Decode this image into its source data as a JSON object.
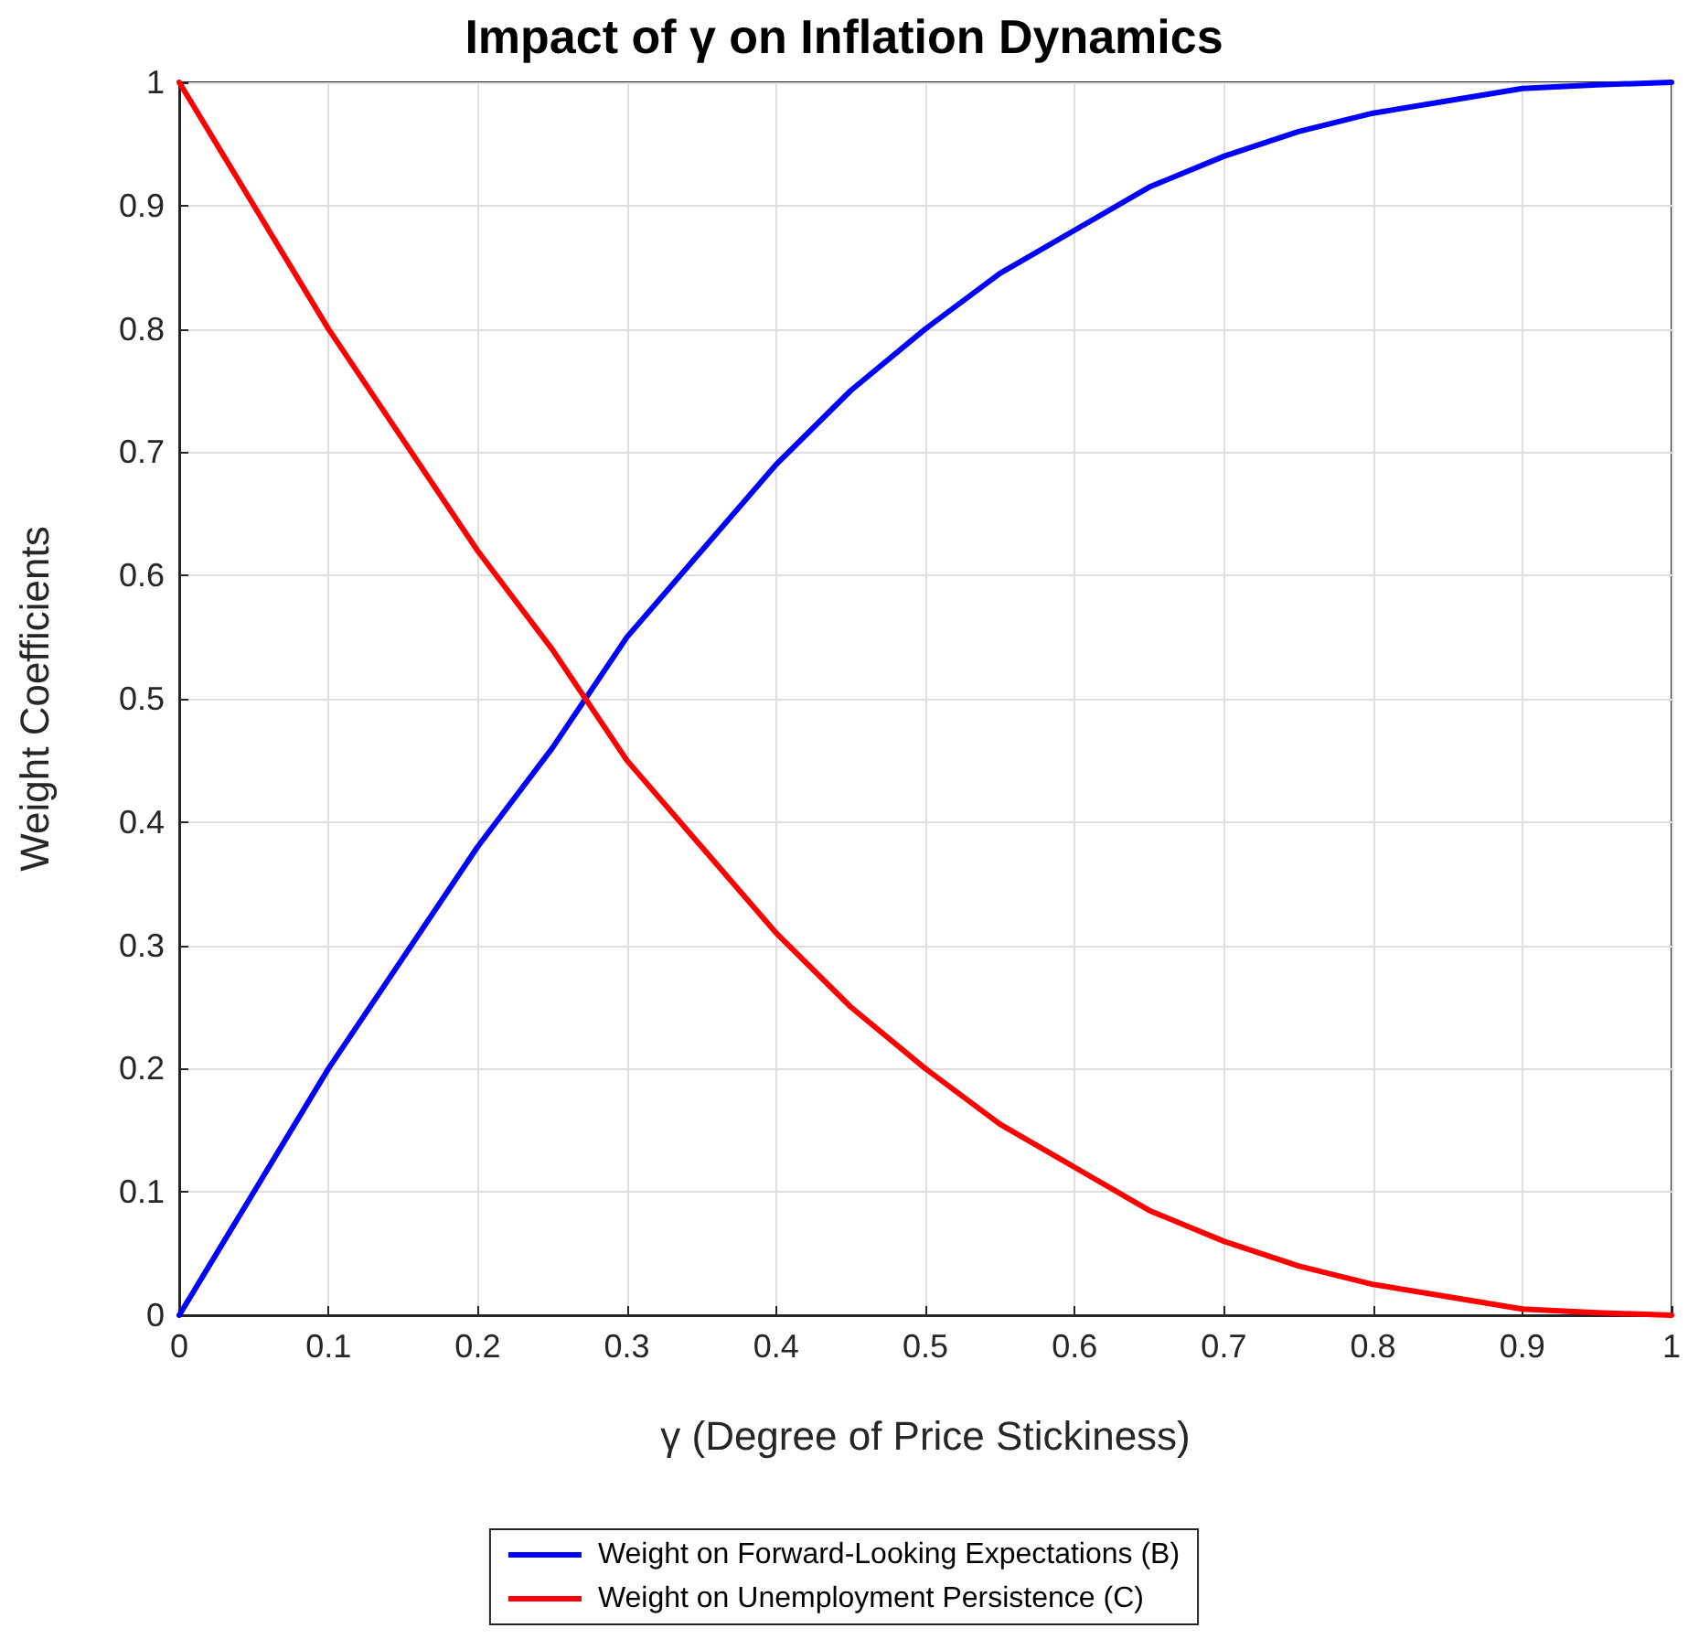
{
  "chart_data": {
    "type": "line",
    "title": "Impact of γ on Inflation Dynamics",
    "xlabel": "γ (Degree of Price Stickiness)",
    "ylabel": "Weight Coefficients",
    "x": [
      0,
      0.05,
      0.1,
      0.15,
      0.2,
      0.25,
      0.3,
      0.35,
      0.4,
      0.45,
      0.5,
      0.55,
      0.6,
      0.65,
      0.7,
      0.75,
      0.8,
      0.85,
      0.9,
      0.95,
      1
    ],
    "series": [
      {
        "name": "Weight on Forward-Looking Expectations (B)",
        "color": "#0000ff",
        "values": [
          0,
          0.1,
          0.2,
          0.29,
          0.38,
          0.46,
          0.55,
          0.62,
          0.69,
          0.75,
          0.8,
          0.845,
          0.88,
          0.915,
          0.94,
          0.96,
          0.975,
          0.985,
          0.995,
          0.998,
          1
        ]
      },
      {
        "name": "Weight on Unemployment Persistence (C)",
        "color": "#ff0000",
        "values": [
          1,
          0.9,
          0.8,
          0.71,
          0.62,
          0.54,
          0.45,
          0.38,
          0.31,
          0.25,
          0.2,
          0.155,
          0.12,
          0.085,
          0.06,
          0.04,
          0.025,
          0.015,
          0.005,
          0.002,
          0
        ]
      }
    ],
    "xlim": [
      0,
      1
    ],
    "xticks": [
      0,
      0.1,
      0.2,
      0.3,
      0.4,
      0.5,
      0.6,
      0.7,
      0.8,
      0.9,
      1
    ],
    "ylim": [
      0,
      1
    ],
    "yticks": [
      0,
      0.1,
      0.2,
      0.3,
      0.4,
      0.5,
      0.6,
      0.7,
      0.8,
      0.9,
      1
    ],
    "grid": true,
    "legend": "bottom",
    "marker": "none",
    "line_style": "solid"
  }
}
